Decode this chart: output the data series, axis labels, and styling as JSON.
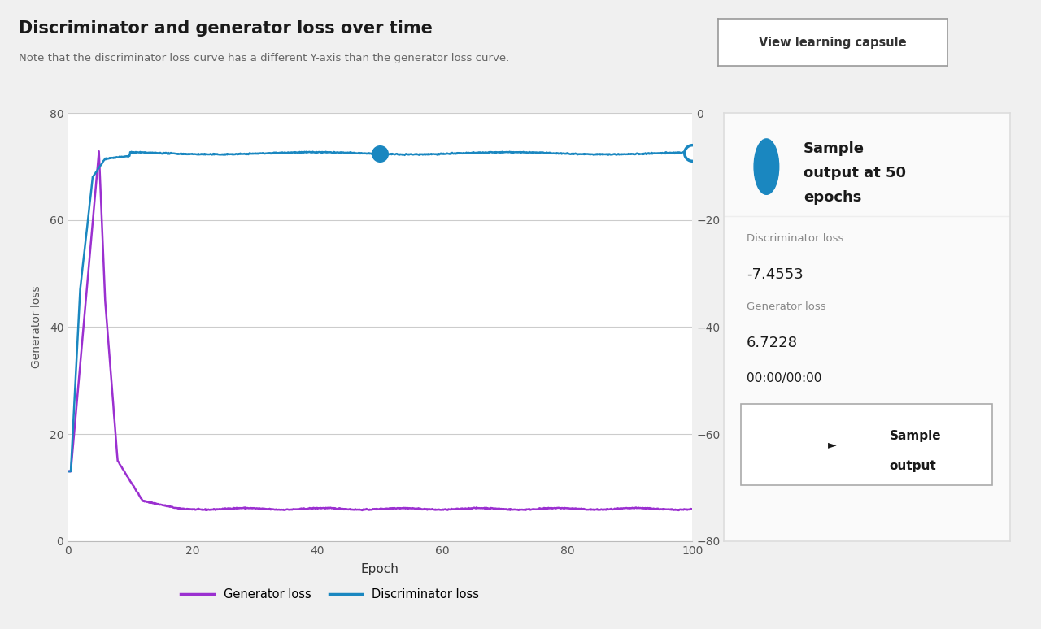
{
  "title": "Discriminator and generator loss over time",
  "subtitle": "Note that the discriminator loss curve has a different Y-axis than the generator loss curve.",
  "button_text": "View learning capsule",
  "xlabel": "Epoch",
  "ylabel_left": "Generator loss",
  "ylabel_right": "Discriminator loss",
  "x_min": 0,
  "x_max": 100,
  "y_left_min": 0,
  "y_left_max": 80,
  "y_right_min": -80,
  "y_right_max": 0,
  "y_left_ticks": [
    0,
    20,
    40,
    60,
    80
  ],
  "y_right_ticks": [
    -80,
    -60,
    -40,
    -20,
    0
  ],
  "x_ticks": [
    0,
    20,
    40,
    60,
    80,
    100
  ],
  "gen_color": "#9b30d0",
  "disc_color": "#1a87c0",
  "bg_color": "#f0f0f0",
  "chart_bg": "#ffffff",
  "grid_color": "#cccccc",
  "legend_items": [
    "Generator loss",
    "Discriminator loss"
  ],
  "side_disc_loss_label": "Discriminator loss",
  "side_disc_loss_val": "-7.4553",
  "side_gen_loss_label": "Generator loss",
  "side_gen_loss_val": "6.7228",
  "side_time": "00:00/00:00"
}
